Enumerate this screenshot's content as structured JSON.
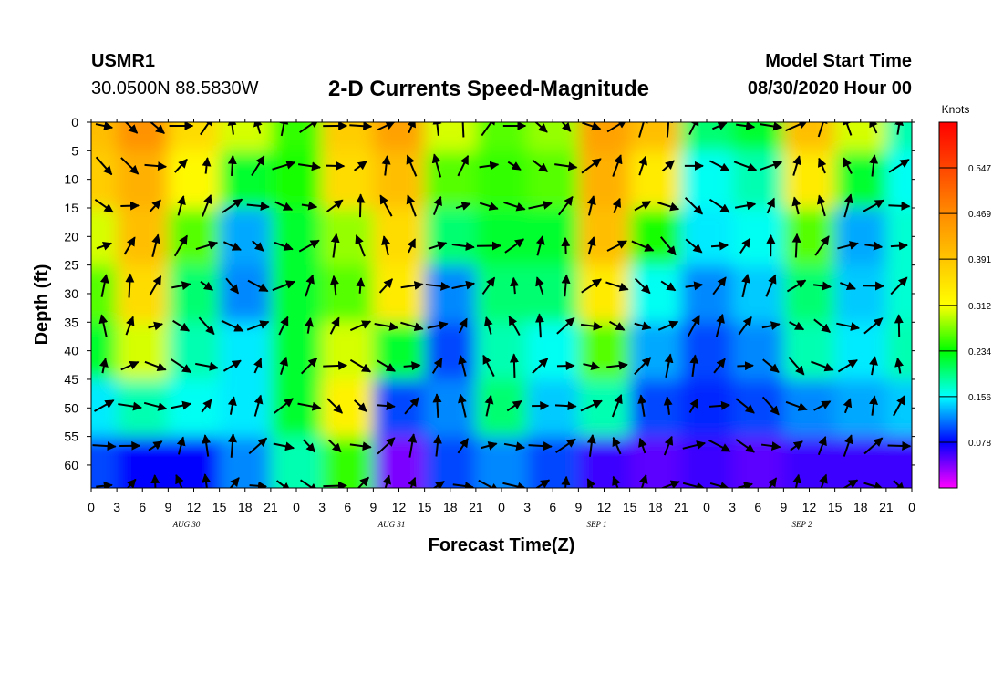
{
  "header": {
    "station": "USMR1",
    "coordinates": "30.0500N 88.5830W",
    "title": "2-D Currents Speed-Magnitude",
    "model_start_label": "Model Start Time",
    "model_start_value": "08/30/2020 Hour 00"
  },
  "chart_data": {
    "type": "heatmap",
    "title": "2-D Currents Speed-Magnitude",
    "xlabel": "Forecast Time(Z)",
    "ylabel": "Depth (ft)",
    "x_ticks": [
      "0",
      "3",
      "6",
      "9",
      "12",
      "15",
      "18",
      "21",
      "0",
      "3",
      "6",
      "9",
      "12",
      "15",
      "18",
      "21",
      "0",
      "3",
      "6",
      "9",
      "12",
      "15",
      "18",
      "21",
      "0",
      "3",
      "6",
      "9",
      "12",
      "15",
      "18",
      "21",
      "0"
    ],
    "x_range_hours": [
      0,
      96
    ],
    "day_labels": [
      {
        "label": "AUG 30",
        "hour": 12
      },
      {
        "label": "AUG 31",
        "hour": 36
      },
      {
        "label": "SEP 1",
        "hour": 60
      },
      {
        "label": "SEP 2",
        "hour": 84
      }
    ],
    "y_ticks": [
      "0",
      "5",
      "10",
      "15",
      "20",
      "25",
      "30",
      "35",
      "40",
      "45",
      "50",
      "55",
      "60"
    ],
    "y_range_ft": [
      0,
      64
    ],
    "colorbar": {
      "units": "Knots",
      "tick_labels": [
        "0.547",
        "0.469",
        "0.391",
        "0.312",
        "0.234",
        "0.156",
        "0.078"
      ],
      "range": [
        0,
        0.625
      ],
      "colors": [
        "#ff00ff",
        "#0000ff",
        "#00ffff",
        "#00ff00",
        "#ffff00",
        "#ff8c00",
        "#ff0000"
      ]
    },
    "speed_grid": {
      "depths_ft": [
        0,
        10,
        20,
        30,
        40,
        50,
        60
      ],
      "hours": [
        0,
        6,
        12,
        18,
        24,
        30,
        36,
        42,
        48,
        54,
        60,
        66,
        72,
        78,
        84,
        90,
        96
      ],
      "values": [
        [
          0.4,
          0.46,
          0.36,
          0.3,
          0.25,
          0.38,
          0.44,
          0.3,
          0.26,
          0.28,
          0.44,
          0.4,
          0.2,
          0.22,
          0.4,
          0.3,
          0.18
        ],
        [
          0.38,
          0.42,
          0.32,
          0.22,
          0.24,
          0.36,
          0.4,
          0.26,
          0.25,
          0.26,
          0.42,
          0.34,
          0.16,
          0.18,
          0.34,
          0.22,
          0.16
        ],
        [
          0.3,
          0.4,
          0.26,
          0.13,
          0.22,
          0.28,
          0.36,
          0.2,
          0.22,
          0.22,
          0.4,
          0.24,
          0.15,
          0.16,
          0.26,
          0.13,
          0.17
        ],
        [
          0.26,
          0.36,
          0.2,
          0.12,
          0.22,
          0.26,
          0.34,
          0.12,
          0.2,
          0.2,
          0.34,
          0.16,
          0.12,
          0.14,
          0.2,
          0.14,
          0.17
        ],
        [
          0.22,
          0.3,
          0.18,
          0.15,
          0.22,
          0.3,
          0.22,
          0.1,
          0.18,
          0.16,
          0.26,
          0.13,
          0.1,
          0.12,
          0.18,
          0.15,
          0.18
        ],
        [
          0.15,
          0.18,
          0.16,
          0.15,
          0.22,
          0.33,
          0.1,
          0.12,
          0.2,
          0.14,
          0.18,
          0.1,
          0.09,
          0.1,
          0.12,
          0.13,
          0.14
        ],
        [
          0.1,
          0.08,
          0.08,
          0.12,
          0.18,
          0.25,
          0.04,
          0.1,
          0.12,
          0.1,
          0.06,
          0.05,
          0.06,
          0.05,
          0.06,
          0.06,
          0.06
        ]
      ]
    }
  }
}
